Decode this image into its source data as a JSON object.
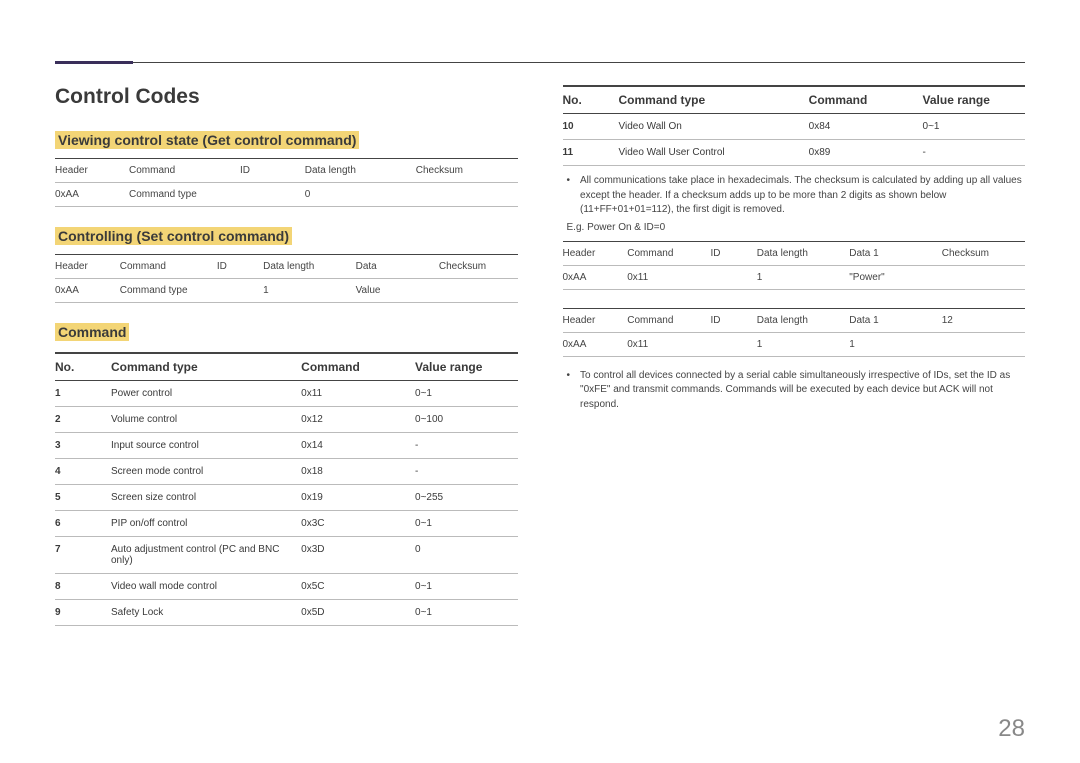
{
  "page_number": "28",
  "main_title": "Control Codes",
  "section_viewing": {
    "heading": "Viewing control state (Get control command)",
    "cols": [
      "Header",
      "Command",
      "ID",
      "Data length",
      "Checksum"
    ],
    "row": [
      "0xAA",
      "Command type",
      "",
      "0",
      ""
    ]
  },
  "section_controlling": {
    "heading": "Controlling (Set control command)",
    "cols": [
      "Header",
      "Command",
      "ID",
      "Data length",
      "Data",
      "Checksum"
    ],
    "row": [
      "0xAA",
      "Command type",
      "",
      "1",
      "Value",
      ""
    ]
  },
  "command_section_heading": "Command",
  "command_table_headers": {
    "no": "No.",
    "type": "Command type",
    "cmd": "Command",
    "range": "Value range"
  },
  "commands_left": [
    {
      "no": "1",
      "type": "Power control",
      "cmd": "0x11",
      "range": "0~1"
    },
    {
      "no": "2",
      "type": "Volume control",
      "cmd": "0x12",
      "range": "0~100"
    },
    {
      "no": "3",
      "type": "Input source control",
      "cmd": "0x14",
      "range": "-"
    },
    {
      "no": "4",
      "type": "Screen mode control",
      "cmd": "0x18",
      "range": "-"
    },
    {
      "no": "5",
      "type": "Screen size control",
      "cmd": "0x19",
      "range": "0~255"
    },
    {
      "no": "6",
      "type": "PIP on/off control",
      "cmd": "0x3C",
      "range": "0~1"
    },
    {
      "no": "7",
      "type": "Auto adjustment control (PC and BNC only)",
      "cmd": "0x3D",
      "range": "0"
    },
    {
      "no": "8",
      "type": "Video wall mode control",
      "cmd": "0x5C",
      "range": "0~1"
    },
    {
      "no": "9",
      "type": "Safety Lock",
      "cmd": "0x5D",
      "range": "0~1"
    }
  ],
  "commands_right": [
    {
      "no": "10",
      "type": "Video Wall On",
      "cmd": "0x84",
      "range": "0~1"
    },
    {
      "no": "11",
      "type": "Video Wall User Control",
      "cmd": "0x89",
      "range": "-"
    }
  ],
  "note1": "All communications take place in hexadecimals. The checksum is calculated by adding up all values except the header. If a checksum adds up to be more than 2 digits as shown below (11+FF+01+01=112), the first digit is removed.",
  "eg_line": "E.g. Power On & ID=0",
  "example_table1": {
    "cols": [
      "Header",
      "Command",
      "ID",
      "Data length",
      "Data 1",
      "Checksum"
    ],
    "row": [
      "0xAA",
      "0x11",
      "",
      "1",
      "\"Power\"",
      ""
    ]
  },
  "example_table2": {
    "cols": [
      "Header",
      "Command",
      "ID",
      "Data length",
      "Data 1",
      "12"
    ],
    "row": [
      "0xAA",
      "0x11",
      "",
      "1",
      "1",
      ""
    ]
  },
  "note2": "To control all devices connected by a serial cable simultaneously irrespective of IDs, set the ID as \"0xFE\" and transmit commands. Commands will be executed by each device but ACK will not respond."
}
